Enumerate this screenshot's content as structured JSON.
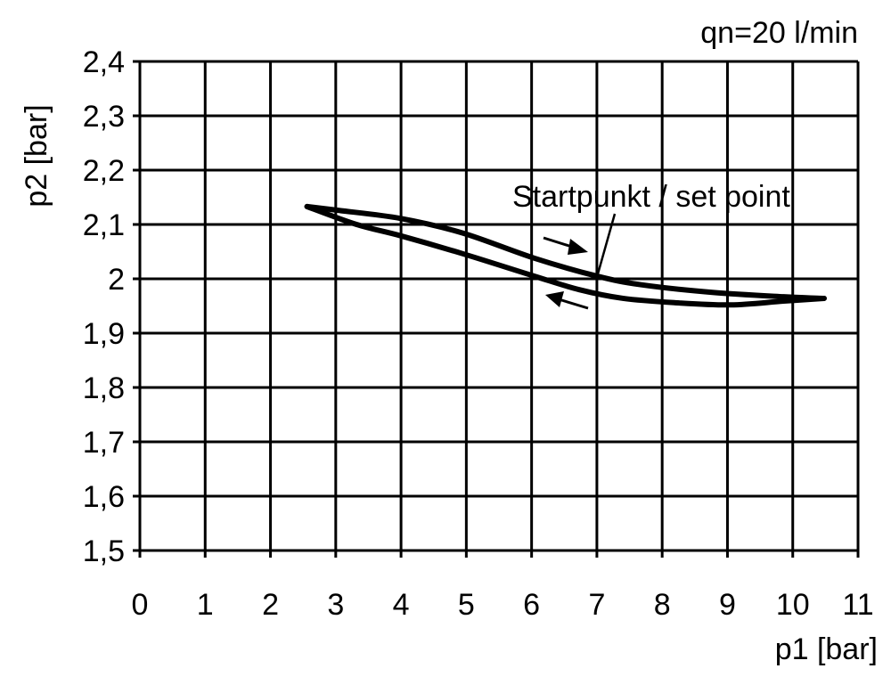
{
  "chart_data": {
    "type": "line",
    "annotation_top_right": "qn=20 l/min",
    "xlabel": "p1 [bar]",
    "ylabel": "p2 [bar]",
    "xlim": [
      0,
      11
    ],
    "ylim": [
      1.5,
      2.4
    ],
    "grid": true,
    "x_ticks": [
      "0",
      "1",
      "2",
      "3",
      "4",
      "5",
      "6",
      "7",
      "8",
      "9",
      "10",
      "11"
    ],
    "y_ticks": [
      "1,5",
      "1,6",
      "1,7",
      "1,8",
      "1,9",
      "2",
      "2,1",
      "2,2",
      "2,3",
      "2,4"
    ],
    "set_point_label": "Startpunkt / set point",
    "set_point": {
      "x": 7.0,
      "y": 2.0
    },
    "series": [
      {
        "direction": "increasing p1",
        "x": [
          2.56,
          3.04,
          4.0,
          4.95,
          6.04,
          7.0,
          7.68,
          8.77,
          9.86,
          10.48
        ],
        "y": [
          2.133,
          2.126,
          2.111,
          2.084,
          2.038,
          2.005,
          1.989,
          1.975,
          1.967,
          1.964
        ]
      },
      {
        "direction": "decreasing p1",
        "x": [
          2.56,
          3.32,
          4.0,
          4.95,
          6.04,
          6.73,
          7.4,
          8.2,
          9.05,
          9.86,
          10.48
        ],
        "y": [
          2.133,
          2.1,
          2.079,
          2.046,
          2.005,
          1.98,
          1.964,
          1.956,
          1.952,
          1.959,
          1.964
        ]
      }
    ],
    "line_color": "#000000"
  }
}
